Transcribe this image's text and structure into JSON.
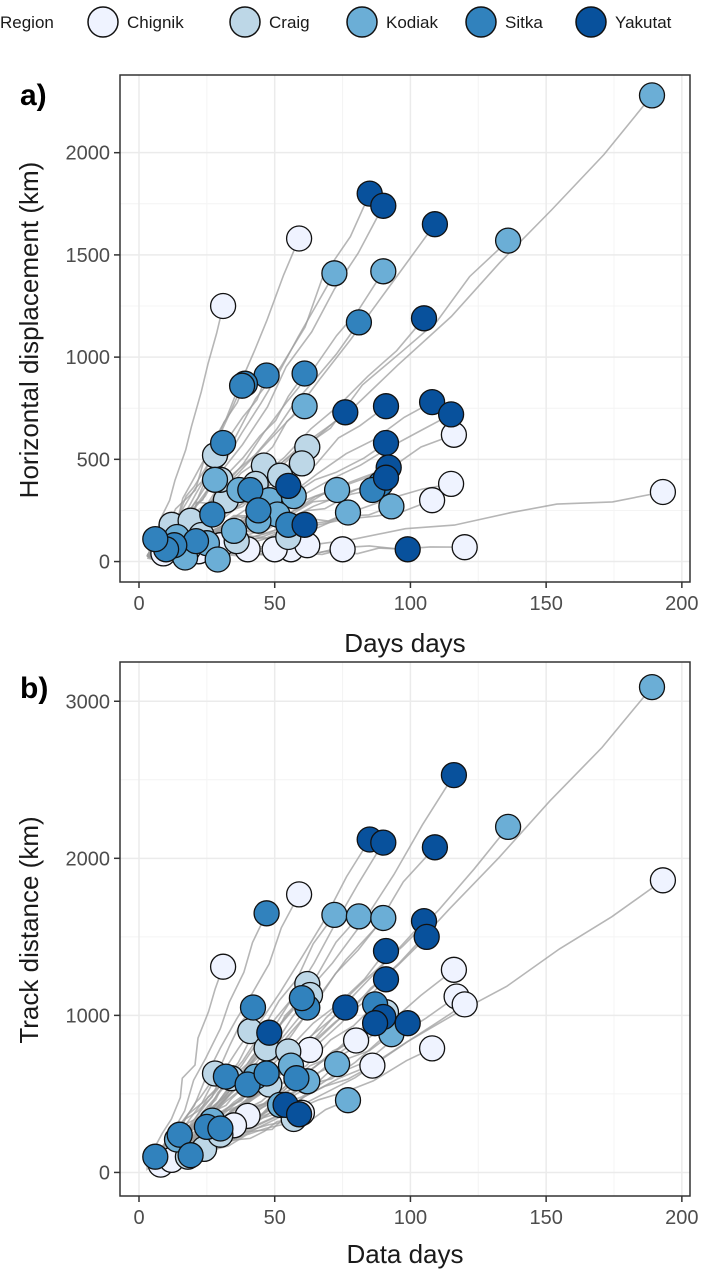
{
  "legend": {
    "title": "Region",
    "items": [
      {
        "label": "Chignik",
        "color": "#eff3ff"
      },
      {
        "label": "Craig",
        "color": "#bdd7e7"
      },
      {
        "label": "Kodiak",
        "color": "#6baed6"
      },
      {
        "label": "Sitka",
        "color": "#3182bd"
      },
      {
        "label": "Yakutat",
        "color": "#08519c"
      }
    ]
  },
  "colors": {
    "track": "#9e9e9e",
    "grid": "#ebebeb",
    "panel_border": "#333333"
  },
  "chart_data": [
    {
      "type": "scatter",
      "panel_tag": "a)",
      "xlabel": "Days days",
      "ylabel": "Horizontal displacement (km)",
      "xlim": [
        -7,
        203
      ],
      "ylim": [
        -100,
        2380
      ],
      "xticks": [
        0,
        50,
        100,
        150,
        200
      ],
      "yticks": [
        0,
        500,
        1000,
        1500,
        2000
      ],
      "grid": true,
      "series": [
        {
          "name": "Chignik",
          "points": [
            [
              31,
              1250
            ],
            [
              59,
              1580
            ],
            [
              116,
              620
            ],
            [
              115,
              380
            ],
            [
              108,
              300
            ],
            [
              193,
              340
            ],
            [
              120,
              70
            ],
            [
              75,
              60
            ],
            [
              56,
              60
            ],
            [
              50,
              60
            ],
            [
              40,
              60
            ],
            [
              62,
              80
            ],
            [
              22,
              50
            ],
            [
              9,
              40
            ],
            [
              30,
              80
            ],
            [
              20,
              100
            ]
          ]
        },
        {
          "name": "Craig",
          "points": [
            [
              32,
              300
            ],
            [
              28,
              520
            ],
            [
              30,
              400
            ],
            [
              46,
              470
            ],
            [
              47,
              240
            ],
            [
              62,
              560
            ],
            [
              60,
              480
            ],
            [
              52,
              420
            ],
            [
              43,
              380
            ],
            [
              12,
              180
            ],
            [
              19,
              200
            ],
            [
              18,
              60
            ],
            [
              23,
              130
            ],
            [
              55,
              120
            ],
            [
              36,
              100
            ]
          ]
        },
        {
          "name": "Kodiak",
          "points": [
            [
              189,
              2280
            ],
            [
              136,
              1570
            ],
            [
              72,
              1410
            ],
            [
              90,
              1420
            ],
            [
              61,
              760
            ],
            [
              73,
              350
            ],
            [
              57,
              320
            ],
            [
              48,
              300
            ],
            [
              51,
              230
            ],
            [
              37,
              350
            ],
            [
              28,
              400
            ],
            [
              14,
              120
            ],
            [
              25,
              90
            ],
            [
              35,
              150
            ],
            [
              44,
              200
            ],
            [
              29,
              10
            ],
            [
              17,
              20
            ],
            [
              93,
              270
            ],
            [
              77,
              240
            ]
          ]
        },
        {
          "name": "Sitka",
          "points": [
            [
              81,
              1170
            ],
            [
              47,
              910
            ],
            [
              61,
              920
            ],
            [
              39,
              870
            ],
            [
              38,
              860
            ],
            [
              31,
              580
            ],
            [
              27,
              230
            ],
            [
              41,
              350
            ],
            [
              44,
              250
            ],
            [
              21,
              100
            ],
            [
              13,
              80
            ],
            [
              55,
              180
            ],
            [
              89,
              380
            ],
            [
              86,
              350
            ],
            [
              10,
              60
            ],
            [
              6,
              110
            ]
          ]
        },
        {
          "name": "Yakutat",
          "points": [
            [
              85,
              1800
            ],
            [
              90,
              1740
            ],
            [
              109,
              1650
            ],
            [
              105,
              1190
            ],
            [
              108,
              780
            ],
            [
              115,
              720
            ],
            [
              76,
              730
            ],
            [
              91,
              760
            ],
            [
              91,
              580
            ],
            [
              92,
              460
            ],
            [
              91,
              410
            ],
            [
              55,
              370
            ],
            [
              61,
              180
            ],
            [
              99,
              60
            ]
          ]
        }
      ]
    },
    {
      "type": "scatter",
      "panel_tag": "b)",
      "xlabel": "Data days",
      "ylabel": "Track distance (km)",
      "xlim": [
        -7,
        203
      ],
      "ylim": [
        -150,
        3250
      ],
      "xticks": [
        0,
        50,
        100,
        150,
        200
      ],
      "yticks": [
        0,
        1000,
        2000,
        3000
      ],
      "grid": true,
      "series": [
        {
          "name": "Chignik",
          "points": [
            [
              31,
              1310
            ],
            [
              59,
              1770
            ],
            [
              193,
              1860
            ],
            [
              116,
              1290
            ],
            [
              117,
              1120
            ],
            [
              120,
              1070
            ],
            [
              108,
              790
            ],
            [
              80,
              840
            ],
            [
              86,
              680
            ],
            [
              63,
              780
            ],
            [
              40,
              360
            ],
            [
              60,
              380
            ],
            [
              8,
              50
            ],
            [
              12,
              80
            ],
            [
              35,
              300
            ]
          ]
        },
        {
          "name": "Craig",
          "points": [
            [
              41,
              900
            ],
            [
              28,
              630
            ],
            [
              47,
              790
            ],
            [
              62,
              1200
            ],
            [
              55,
              770
            ],
            [
              48,
              560
            ],
            [
              57,
              340
            ],
            [
              34,
              600
            ],
            [
              91,
              1020
            ],
            [
              24,
              150
            ],
            [
              18,
              100
            ],
            [
              30,
              240
            ],
            [
              63,
              1130
            ]
          ]
        },
        {
          "name": "Kodiak",
          "points": [
            [
              189,
              3090
            ],
            [
              136,
              2200
            ],
            [
              72,
              1640
            ],
            [
              81,
              1630
            ],
            [
              90,
              1620
            ],
            [
              73,
              690
            ],
            [
              77,
              460
            ],
            [
              62,
              580
            ],
            [
              43,
              610
            ],
            [
              56,
              680
            ],
            [
              52,
              430
            ],
            [
              27,
              330
            ],
            [
              14,
              210
            ],
            [
              93,
              880
            ]
          ]
        },
        {
          "name": "Sitka",
          "points": [
            [
              47,
              1650
            ],
            [
              42,
              1050
            ],
            [
              62,
              1050
            ],
            [
              60,
              1110
            ],
            [
              32,
              610
            ],
            [
              40,
              560
            ],
            [
              47,
              630
            ],
            [
              25,
              290
            ],
            [
              15,
              240
            ],
            [
              19,
              110
            ],
            [
              87,
              1070
            ],
            [
              30,
              280
            ],
            [
              6,
              100
            ],
            [
              58,
              600
            ]
          ]
        },
        {
          "name": "Yakutat",
          "points": [
            [
              116,
              2530
            ],
            [
              85,
              2120
            ],
            [
              90,
              2100
            ],
            [
              109,
              2070
            ],
            [
              105,
              1600
            ],
            [
              106,
              1500
            ],
            [
              91,
              1410
            ],
            [
              91,
              1230
            ],
            [
              90,
              990
            ],
            [
              99,
              950
            ],
            [
              76,
              1050
            ],
            [
              87,
              950
            ],
            [
              48,
              890
            ],
            [
              54,
              430
            ],
            [
              59,
              370
            ]
          ]
        }
      ]
    }
  ]
}
